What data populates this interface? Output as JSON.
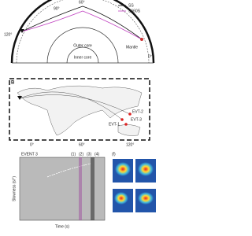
{
  "panel_a": {
    "legend": [
      "SS",
      "S660S"
    ],
    "angles": [
      "90°",
      "60°",
      "120°",
      "0°"
    ],
    "regions": {
      "outer_core": "Outer core",
      "inner_core": "Inner core",
      "mantle": "Mantle"
    }
  },
  "panel_b": {
    "tag": "B",
    "longitudes": [
      "0°",
      "60°",
      "120°"
    ],
    "events": [
      "EVT-1",
      "EVT-2",
      "EVT-3"
    ]
  },
  "panel_c": {
    "title": "EVENT 3",
    "phases": [
      "(1)",
      "(2)",
      "(3)",
      "(4)"
    ],
    "x_label": "Time (s)",
    "y_label": "Slowness (s/°)",
    "sub_tag": "(f)"
  }
}
